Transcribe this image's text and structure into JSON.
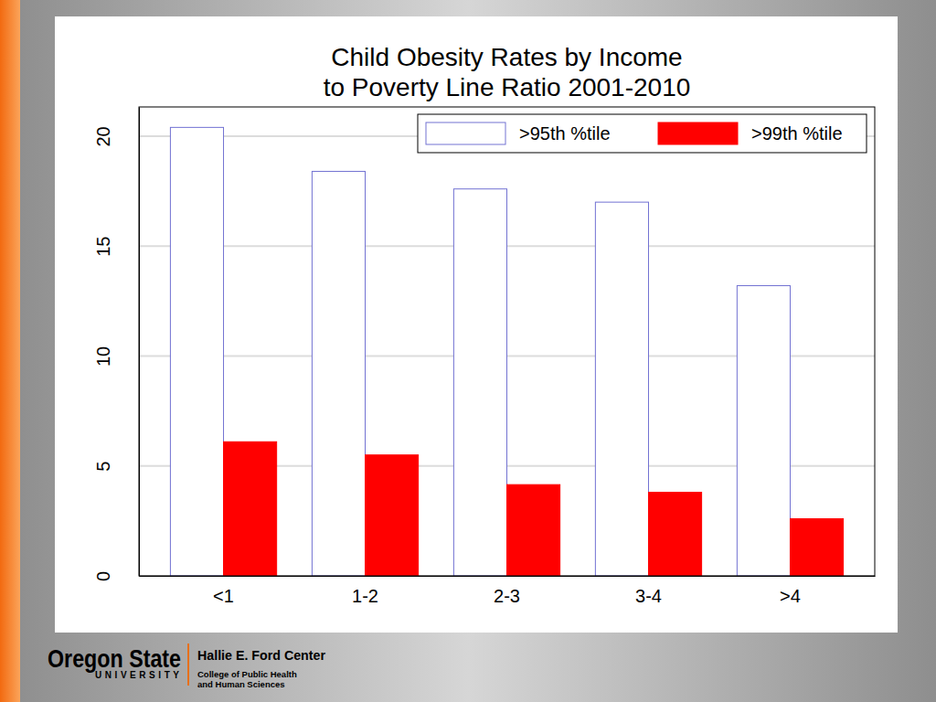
{
  "chart_data": {
    "type": "bar",
    "title": "Child Obesity Rates by Income\nto Poverty Line Ratio 2001-2010",
    "categories": [
      "<1",
      "1-2",
      "2-3",
      "3-4",
      ">4"
    ],
    "series": [
      {
        "name": ">95th %tile",
        "color": "#ffffff",
        "values": [
          20.4,
          18.4,
          17.6,
          17.0,
          13.2
        ]
      },
      {
        "name": ">99th %tile",
        "color": "#ff0000",
        "values": [
          6.1,
          5.5,
          4.15,
          3.8,
          2.6
        ]
      }
    ],
    "ylim": [
      0,
      21.33
    ],
    "yticks": [
      0,
      5,
      10,
      15,
      20
    ],
    "grid": true,
    "legend": "top-right"
  },
  "footer": {
    "logo_main": "Oregon State",
    "logo_sub": "UNIVERSITY",
    "center": "Hallie E. Ford Center",
    "department": [
      "College of Public Health",
      "and Human Sciences"
    ]
  }
}
